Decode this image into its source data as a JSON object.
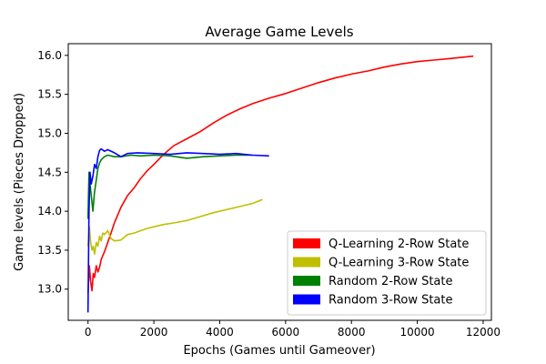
{
  "chart_data": {
    "type": "line",
    "title": "Average Game Levels",
    "xlabel": "Epochs (Games until Gameover)",
    "ylabel": "Game levels (Pieces Dropped)",
    "xlim": [
      -600,
      12250
    ],
    "ylim": [
      12.6,
      16.15
    ],
    "xticks": [
      0,
      2000,
      4000,
      6000,
      8000,
      10000,
      12000
    ],
    "yticks": [
      13.0,
      13.5,
      14.0,
      14.5,
      15.0,
      15.5,
      16.0
    ],
    "grid": false,
    "legend_position": "lower-right",
    "series": [
      {
        "name": "Q-Learning 2-Row State",
        "color": "#ff0000",
        "points": [
          [
            0,
            12.95
          ],
          [
            40,
            13.3
          ],
          [
            80,
            13.1
          ],
          [
            120,
            12.98
          ],
          [
            160,
            13.2
          ],
          [
            200,
            13.15
          ],
          [
            250,
            13.3
          ],
          [
            300,
            13.22
          ],
          [
            350,
            13.28
          ],
          [
            400,
            13.38
          ],
          [
            500,
            13.48
          ],
          [
            600,
            13.6
          ],
          [
            700,
            13.72
          ],
          [
            800,
            13.85
          ],
          [
            900,
            13.95
          ],
          [
            1000,
            14.05
          ],
          [
            1200,
            14.2
          ],
          [
            1400,
            14.3
          ],
          [
            1600,
            14.42
          ],
          [
            1800,
            14.52
          ],
          [
            2000,
            14.6
          ],
          [
            2300,
            14.73
          ],
          [
            2600,
            14.84
          ],
          [
            3000,
            14.93
          ],
          [
            3400,
            15.02
          ],
          [
            3800,
            15.13
          ],
          [
            4200,
            15.23
          ],
          [
            4600,
            15.31
          ],
          [
            5000,
            15.38
          ],
          [
            5500,
            15.45
          ],
          [
            6000,
            15.51
          ],
          [
            6500,
            15.58
          ],
          [
            7000,
            15.65
          ],
          [
            7500,
            15.71
          ],
          [
            8000,
            15.76
          ],
          [
            8500,
            15.8
          ],
          [
            9000,
            15.85
          ],
          [
            9500,
            15.89
          ],
          [
            10000,
            15.92
          ],
          [
            10500,
            15.94
          ],
          [
            11000,
            15.96
          ],
          [
            11700,
            15.99
          ]
        ]
      },
      {
        "name": "Q-Learning 3-Row State",
        "color": "#bfbf00",
        "points": [
          [
            0,
            13.55
          ],
          [
            40,
            13.8
          ],
          [
            80,
            13.6
          ],
          [
            120,
            13.5
          ],
          [
            160,
            13.55
          ],
          [
            200,
            13.45
          ],
          [
            250,
            13.6
          ],
          [
            300,
            13.55
          ],
          [
            350,
            13.68
          ],
          [
            400,
            13.62
          ],
          [
            450,
            13.72
          ],
          [
            500,
            13.7
          ],
          [
            600,
            13.75
          ],
          [
            700,
            13.65
          ],
          [
            800,
            13.62
          ],
          [
            1000,
            13.63
          ],
          [
            1200,
            13.7
          ],
          [
            1400,
            13.72
          ],
          [
            1600,
            13.75
          ],
          [
            1800,
            13.78
          ],
          [
            2000,
            13.8
          ],
          [
            2300,
            13.83
          ],
          [
            2600,
            13.85
          ],
          [
            3000,
            13.88
          ],
          [
            3400,
            13.93
          ],
          [
            3800,
            13.98
          ],
          [
            4200,
            14.02
          ],
          [
            4600,
            14.06
          ],
          [
            5000,
            14.1
          ],
          [
            5300,
            14.15
          ]
        ]
      },
      {
        "name": "Random 2-Row State",
        "color": "#008000",
        "points": [
          [
            0,
            13.9
          ],
          [
            30,
            14.5
          ],
          [
            60,
            14.35
          ],
          [
            100,
            14.2
          ],
          [
            150,
            14.0
          ],
          [
            200,
            14.25
          ],
          [
            250,
            14.4
          ],
          [
            300,
            14.55
          ],
          [
            350,
            14.62
          ],
          [
            400,
            14.66
          ],
          [
            500,
            14.7
          ],
          [
            600,
            14.72
          ],
          [
            800,
            14.7
          ],
          [
            1000,
            14.7
          ],
          [
            1300,
            14.72
          ],
          [
            1600,
            14.71
          ],
          [
            2000,
            14.72
          ],
          [
            2500,
            14.71
          ],
          [
            3000,
            14.68
          ],
          [
            3500,
            14.7
          ],
          [
            4000,
            14.71
          ],
          [
            4500,
            14.72
          ],
          [
            5000,
            14.72
          ]
        ]
      },
      {
        "name": "Random 3-Row State",
        "color": "#0000ff",
        "points": [
          [
            0,
            12.7
          ],
          [
            30,
            14.0
          ],
          [
            60,
            14.5
          ],
          [
            100,
            14.35
          ],
          [
            150,
            14.45
          ],
          [
            200,
            14.6
          ],
          [
            250,
            14.55
          ],
          [
            300,
            14.7
          ],
          [
            350,
            14.78
          ],
          [
            400,
            14.8
          ],
          [
            500,
            14.77
          ],
          [
            600,
            14.79
          ],
          [
            800,
            14.75
          ],
          [
            1000,
            14.7
          ],
          [
            1200,
            14.74
          ],
          [
            1500,
            14.75
          ],
          [
            2000,
            14.74
          ],
          [
            2500,
            14.73
          ],
          [
            3000,
            14.75
          ],
          [
            3500,
            14.74
          ],
          [
            4000,
            14.73
          ],
          [
            4500,
            14.74
          ],
          [
            5000,
            14.72
          ],
          [
            5500,
            14.71
          ]
        ]
      }
    ]
  }
}
